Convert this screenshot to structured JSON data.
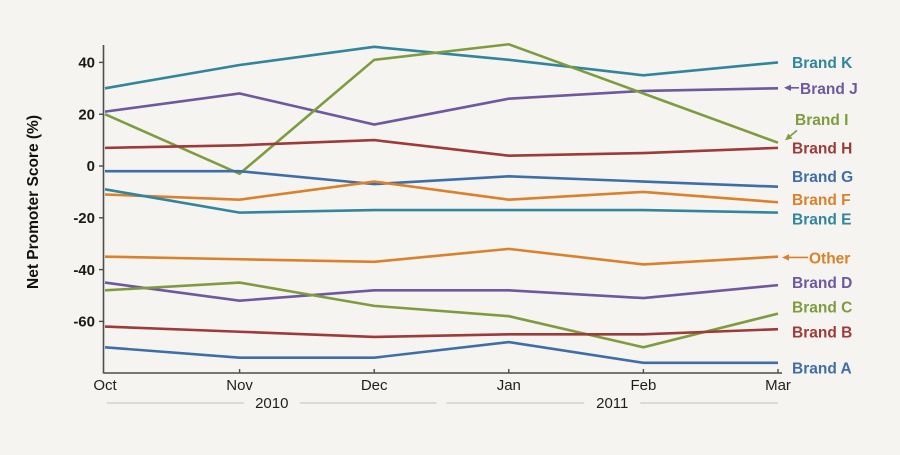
{
  "chart_data": {
    "type": "line",
    "title": "",
    "ylabel": "Net Promoter Score (%)",
    "xlabel": "",
    "x_categories": [
      "Oct",
      "Nov",
      "Dec",
      "Jan",
      "Feb",
      "Mar"
    ],
    "x_year_groups": [
      {
        "label": "2010",
        "from": 0,
        "to": 2
      },
      {
        "label": "2011",
        "from": 3,
        "to": 5
      }
    ],
    "yticks": [
      40,
      20,
      0,
      -20,
      -40,
      -60
    ],
    "ylim": [
      -80,
      47
    ],
    "grid": false,
    "legend_position": "direct-labels-right",
    "series": [
      {
        "name": "Brand K",
        "color": "#31859C",
        "values": [
          30,
          39,
          46,
          41,
          35,
          40
        ],
        "label_at": 40,
        "arrow": "none"
      },
      {
        "name": "Brand J",
        "color": "#6E589E",
        "values": [
          21,
          28,
          16,
          26,
          29,
          30
        ],
        "label_at": 30,
        "arrow": "short"
      },
      {
        "name": "Brand I",
        "color": "#7E9C3F",
        "values": [
          20,
          -3,
          41,
          47,
          28,
          9
        ],
        "label_at": 18,
        "arrow": "diag"
      },
      {
        "name": "Brand H",
        "color": "#9E3B38",
        "values": [
          7,
          8,
          10,
          4,
          5,
          7
        ],
        "label_at": 7,
        "arrow": "none"
      },
      {
        "name": "Brand G",
        "color": "#3F6EA6",
        "values": [
          -2,
          -2,
          -7,
          -4,
          -6,
          -8
        ],
        "label_at": -4,
        "arrow": "none"
      },
      {
        "name": "Brand F",
        "color": "#D9812B",
        "values": [
          -11,
          -13,
          -6,
          -13,
          -10,
          -14
        ],
        "label_at": -13,
        "arrow": "none"
      },
      {
        "name": "Brand E",
        "color": "#31859C",
        "values": [
          -9,
          -18,
          -17,
          -17,
          -17,
          -18
        ],
        "label_at": -20.5,
        "arrow": "none"
      },
      {
        "name": "Other",
        "color": "#D9812B",
        "values": [
          -35,
          -36,
          -37,
          -32,
          -38,
          -35
        ],
        "label_at": -35.5,
        "arrow": "long"
      },
      {
        "name": "Brand D",
        "color": "#6E589E",
        "values": [
          -45,
          -52,
          -48,
          -48,
          -51,
          -46
        ],
        "label_at": -45,
        "arrow": "none"
      },
      {
        "name": "Brand C",
        "color": "#7E9C3F",
        "values": [
          -48,
          -45,
          -54,
          -58,
          -70,
          -57
        ],
        "label_at": -54.5,
        "arrow": "none"
      },
      {
        "name": "Brand B",
        "color": "#9E3B38",
        "values": [
          -62,
          -64,
          -66,
          -65,
          -65,
          -63
        ],
        "label_at": -64,
        "arrow": "none"
      },
      {
        "name": "Brand A",
        "color": "#3F6EA6",
        "values": [
          -70,
          -74,
          -74,
          -68,
          -76,
          -76
        ],
        "label_at": -78,
        "arrow": "none"
      }
    ]
  },
  "style": {
    "background": "#F5F4F1",
    "axis_color": "#4D4D4D",
    "tick_text_color": "#1A1A1A",
    "year_line_color": "#C9C9C9"
  }
}
